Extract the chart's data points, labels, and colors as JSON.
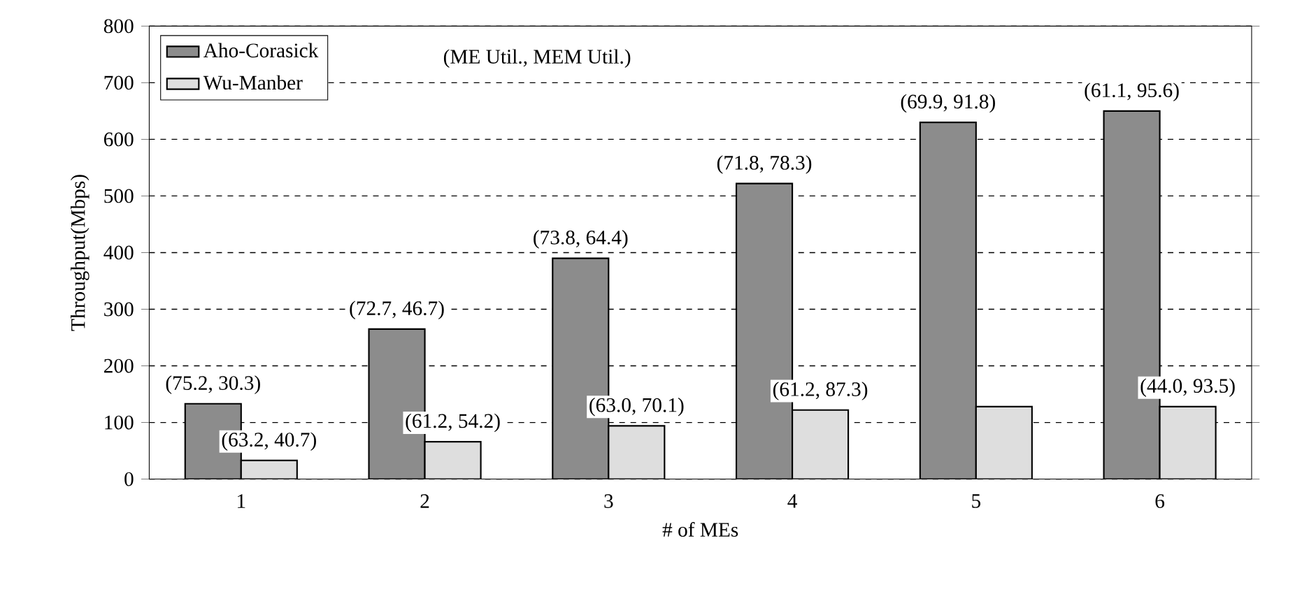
{
  "chart_data": {
    "type": "bar",
    "xlabel": "# of MEs",
    "ylabel": "Throughput(Mbps)",
    "categories": [
      "1",
      "2",
      "3",
      "4",
      "5",
      "6"
    ],
    "series": [
      {
        "name": "Aho-Corasick",
        "color": "#8c8c8c",
        "values": [
          133,
          265,
          390,
          522,
          630,
          650
        ],
        "value_labels": [
          "(75.2, 30.3)",
          "(72.7, 46.7)",
          "(73.8, 64.4)",
          "(71.8, 78.3)",
          "(69.9, 91.8)",
          "(61.1, 95.6)"
        ]
      },
      {
        "name": "Wu-Manber",
        "color": "#dedede",
        "values": [
          33,
          66,
          94,
          122,
          128,
          128
        ],
        "value_labels": [
          "(63.2, 40.7)",
          "(61.2, 54.2)",
          "(63.0, 70.1)",
          "(61.2, 87.3)",
          null,
          "(44.0, 93.5)"
        ]
      }
    ],
    "annotations": [
      "(ME Util., MEM Util.)"
    ],
    "ylim": [
      0,
      800
    ],
    "yticks": [
      0,
      100,
      200,
      300,
      400,
      500,
      600,
      700,
      800
    ],
    "grid": "y",
    "legend": "top left"
  }
}
